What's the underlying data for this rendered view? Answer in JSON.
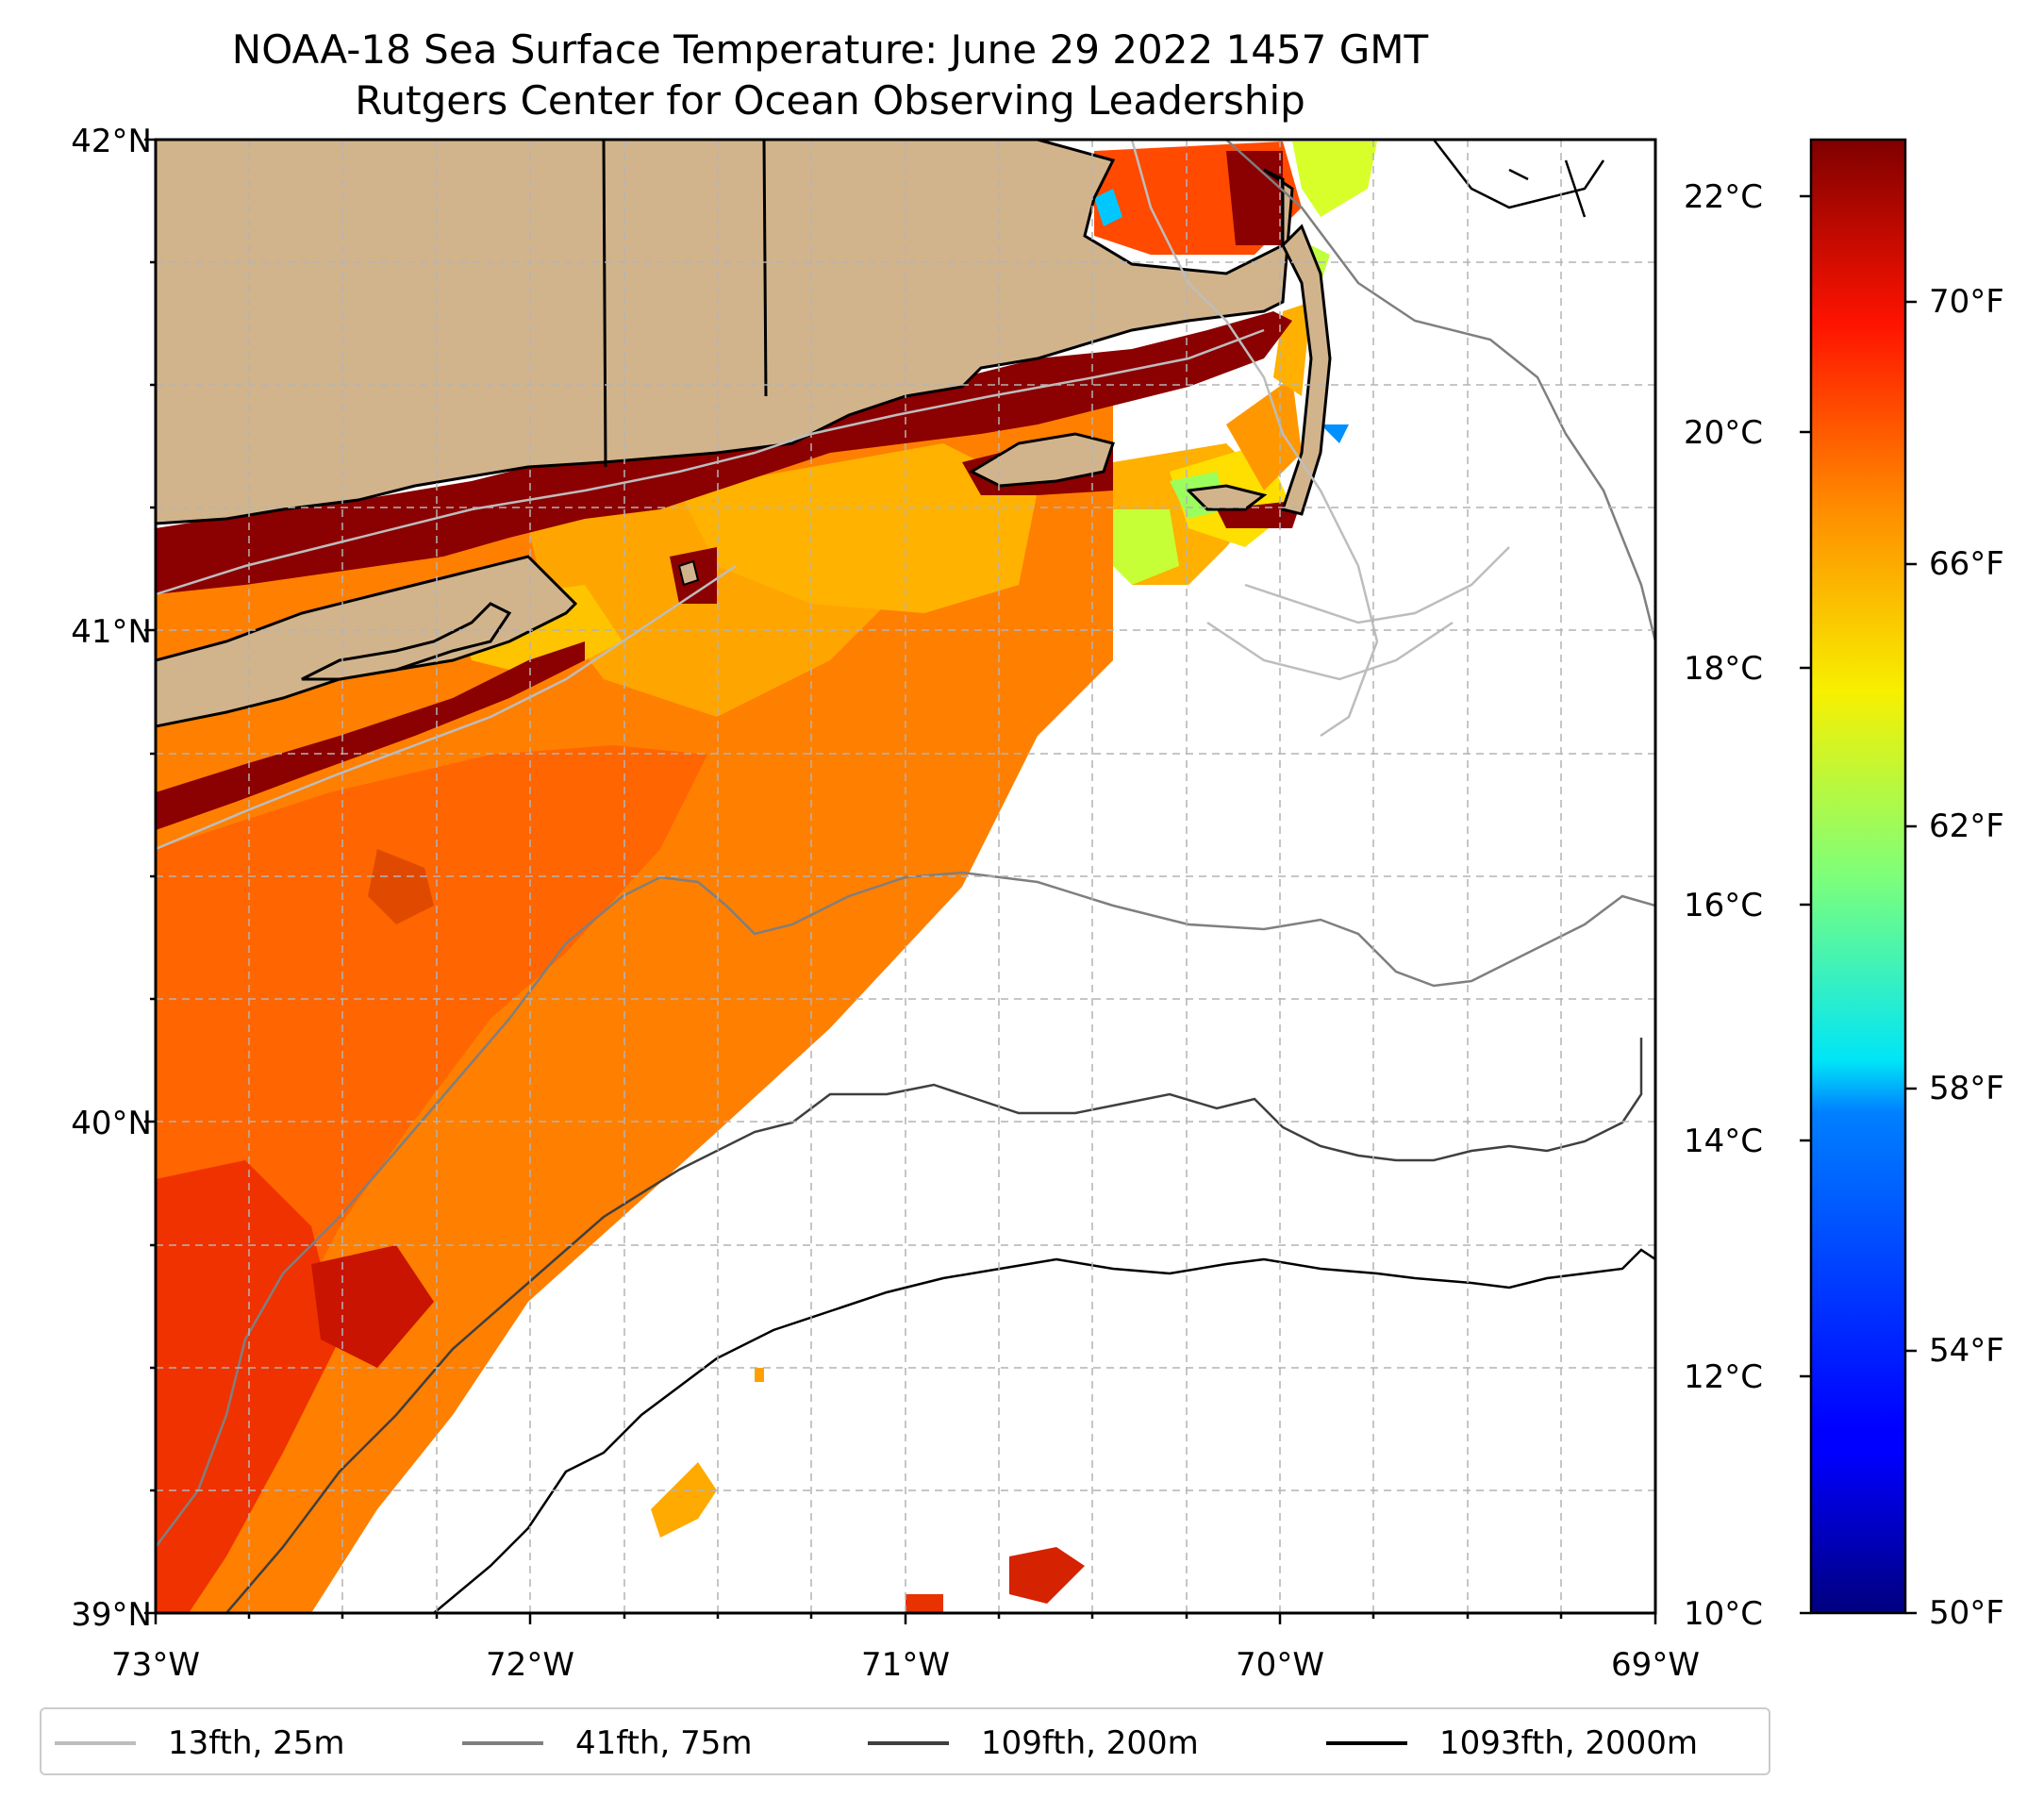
{
  "title": {
    "line1": "NOAA-18 Sea Surface Temperature: June 29 2022 1457 GMT",
    "line2": "Rutgers Center for Ocean Observing Leadership"
  },
  "axes": {
    "x_ticks": [
      "73°W",
      "72°W",
      "71°W",
      "70°W",
      "69°W"
    ],
    "y_ticks": [
      "42°N",
      "41°N",
      "40°N",
      "39°N"
    ],
    "lon_range": [
      -73,
      -69
    ],
    "lat_range": [
      39,
      42
    ]
  },
  "colorbar": {
    "colormap": "jet",
    "celsius_ticks": [
      "22°C",
      "20°C",
      "18°C",
      "16°C",
      "14°C",
      "12°C",
      "10°C"
    ],
    "fahrenheit_ticks": [
      "70°F",
      "66°F",
      "62°F",
      "58°F",
      "54°F",
      "50°F"
    ],
    "range_celsius": [
      10,
      22.5
    ]
  },
  "colors": {
    "land": "#d2b48c",
    "contour_25m": "#bdbdbd",
    "contour_75m": "#7f7f7f",
    "contour_200m": "#3f3f3f",
    "contour_2000m": "#000000"
  },
  "legend": {
    "items": [
      {
        "label": "13fth, 25m",
        "color": "#bdbdbd"
      },
      {
        "label": "41fth, 75m",
        "color": "#7f7f7f"
      },
      {
        "label": "109fth, 200m",
        "color": "#3f3f3f"
      },
      {
        "label": "1093fth, 2000m",
        "color": "#000000"
      }
    ]
  }
}
